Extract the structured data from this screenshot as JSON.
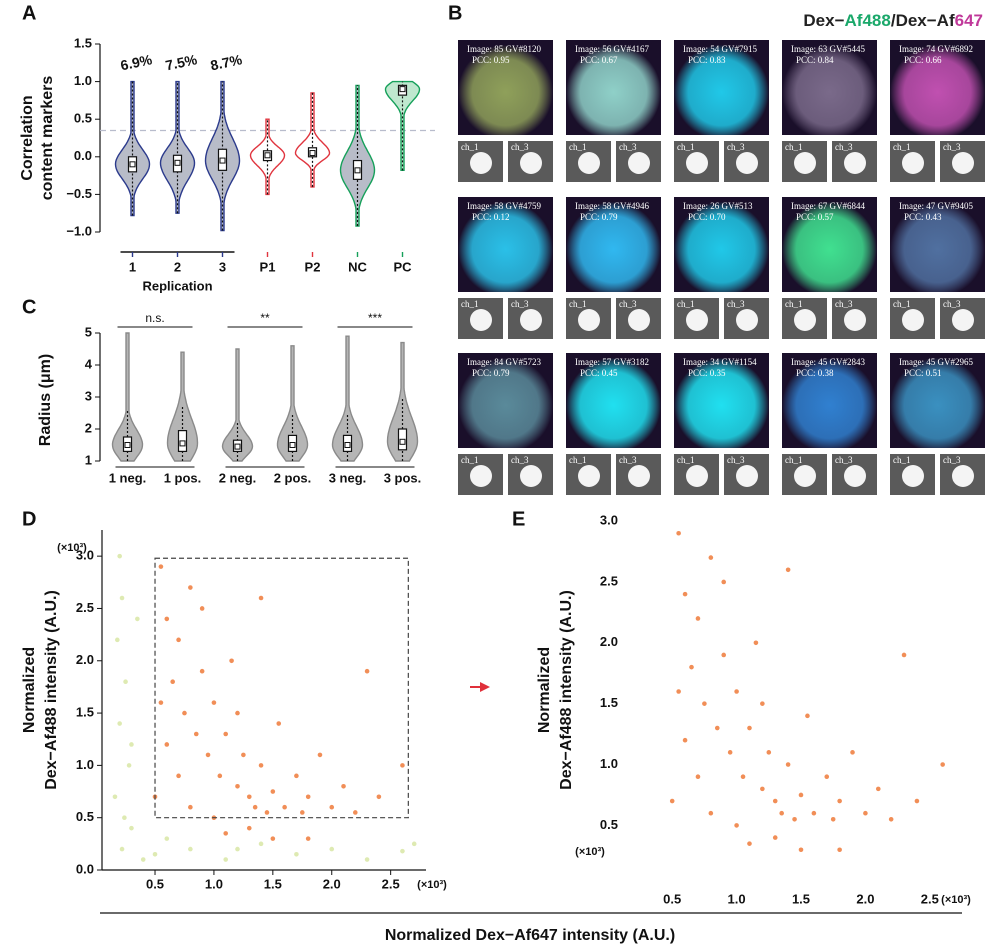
{
  "panel_labels": [
    "A",
    "B",
    "C",
    "D",
    "E"
  ],
  "shared_xlabel": "Normalized Dex−Af647 intensity (A.U.)",
  "panel_b": {
    "title_parts": [
      {
        "text": "Dex−",
        "color": "#222222"
      },
      {
        "text": "Af488",
        "color": "#1aa86a"
      },
      {
        "text": "/Dex−Af",
        "color": "#222222"
      },
      {
        "text": "647",
        "color": "#c0399a"
      }
    ],
    "channels": [
      "ch_1",
      "ch_3"
    ],
    "tiles": [
      [
        {
          "image": "Image: 85 GV#8120",
          "pcc": "PCC: 0.95",
          "color": "#8fa05a"
        },
        {
          "image": "Image: 56 GV#4167",
          "pcc": "PCC: 0.67",
          "color": "#8fd0c8"
        },
        {
          "image": "Image: 54 GV#7915",
          "pcc": "PCC: 0.83",
          "color": "#20c8e8"
        },
        {
          "image": "Image: 63 GV#5445",
          "pcc": "PCC: 0.84",
          "color": "#7a6a8a"
        },
        {
          "image": "Image: 74 GV#6892",
          "pcc": "PCC: 0.66",
          "color": "#c050b0"
        }
      ],
      [
        {
          "image": "Image: 58 GV#4759",
          "pcc": "PCC: 0.12",
          "color": "#2ac0e8"
        },
        {
          "image": "Image: 58 GV#4946",
          "pcc": "PCC: 0.79",
          "color": "#30b8f0"
        },
        {
          "image": "Image: 26 GV#513",
          "pcc": "PCC: 0.70",
          "color": "#20c8e8"
        },
        {
          "image": "Image: 67 GV#6844",
          "pcc": "PCC: 0.57",
          "color": "#40e090"
        },
        {
          "image": "Image: 47 GV#9405",
          "pcc": "PCC: 0.43",
          "color": "#5070a0"
        }
      ],
      [
        {
          "image": "Image: 84 GV#5723",
          "pcc": "PCC: 0.79",
          "color": "#5a8a9a"
        },
        {
          "image": "Image: 57 GV#3182",
          "pcc": "PCC: 0.45",
          "color": "#20e0f0"
        },
        {
          "image": "Image: 34 GV#1154",
          "pcc": "PCC: 0.35",
          "color": "#20e0f0"
        },
        {
          "image": "Image: 45 GV#2843",
          "pcc": "PCC: 0.38",
          "color": "#3080d0"
        },
        {
          "image": "Image: 45 GV#2965",
          "pcc": "PCC: 0.51",
          "color": "#3a90c0"
        }
      ]
    ]
  },
  "chart_data": [
    {
      "type": "violin",
      "ylabel": [
        "Correlation",
        "content markers"
      ],
      "ylim": [
        -1,
        1.5
      ],
      "yticks": [
        {
          "value": -1,
          "label": "−1.0"
        },
        {
          "value": -0.5,
          "label": "−0.5"
        },
        {
          "value": 0,
          "label": "0.0"
        },
        0.5,
        {
          "value": 1,
          "label": "1.0"
        },
        1.5
      ],
      "reference_line": 0.35,
      "categories": [
        "1",
        "2",
        "3",
        "P1",
        "P2",
        "NC",
        "PC"
      ],
      "colors": [
        "#2b3a8c",
        "#2b3a8c",
        "#2b3a8c",
        "#e0353f",
        "#e0353f",
        "#16a05a",
        "#16a05a"
      ],
      "fills": [
        "#b8bcc8",
        "#b8bcc8",
        "#b8bcc8",
        "none",
        "none",
        "#b8bcc8",
        "#bfe8cf"
      ],
      "label_colors": [
        "#111111",
        "#111111",
        "#111111",
        "#e0353f",
        "#e0353f",
        "#16a05a",
        "#16a05a"
      ],
      "annotations": [
        "6.9%",
        "7.5%",
        "8.7%"
      ],
      "bracket": {
        "label": "Replication",
        "span": [
          0,
          2
        ],
        "color": "#2b3a8c"
      },
      "stats": [
        {
          "min": -0.78,
          "q1": -0.2,
          "median": -0.1,
          "q3": 0.0,
          "max": 1.0
        },
        {
          "min": -0.75,
          "q1": -0.2,
          "median": -0.08,
          "q3": 0.02,
          "max": 1.0
        },
        {
          "min": -0.98,
          "q1": -0.18,
          "median": -0.05,
          "q3": 0.1,
          "max": 1.0
        },
        {
          "min": -0.5,
          "q1": -0.05,
          "median": 0.02,
          "q3": 0.08,
          "max": 0.5
        },
        {
          "min": -0.4,
          "q1": 0.0,
          "median": 0.05,
          "q3": 0.12,
          "max": 0.85
        },
        {
          "min": -0.92,
          "q1": -0.3,
          "median": -0.18,
          "q3": -0.05,
          "max": 0.95
        },
        {
          "min": -0.18,
          "q1": 0.82,
          "median": 0.9,
          "q3": 0.95,
          "max": 1.0
        }
      ]
    },
    {
      "type": "violin",
      "ylabel": [
        "Radius (μm)"
      ],
      "ylim": [
        1,
        5
      ],
      "yticks": [
        1,
        2,
        3,
        4,
        5
      ],
      "categories": [
        "1 neg.",
        "1 pos.",
        "2 neg.",
        "2 pos.",
        "3 neg.",
        "3 pos."
      ],
      "color": "#8a8a8a",
      "fill": "#b5b5b5",
      "comparisons": [
        {
          "label": "n.s.",
          "pair": [
            0,
            1
          ]
        },
        {
          "label": "**",
          "pair": [
            2,
            3
          ]
        },
        {
          "label": "***",
          "pair": [
            4,
            5
          ]
        }
      ],
      "stats": [
        {
          "min": 1.0,
          "q1": 1.3,
          "median": 1.5,
          "q3": 1.75,
          "max": 5.0,
          "whisker": [
            1.0,
            2.6
          ]
        },
        {
          "min": 1.0,
          "q1": 1.3,
          "median": 1.55,
          "q3": 1.95,
          "max": 4.4,
          "whisker": [
            1.0,
            2.75
          ]
        },
        {
          "min": 1.0,
          "q1": 1.3,
          "median": 1.45,
          "q3": 1.65,
          "max": 4.5,
          "whisker": [
            1.0,
            2.2
          ]
        },
        {
          "min": 1.0,
          "q1": 1.3,
          "median": 1.5,
          "q3": 1.8,
          "max": 4.6,
          "whisker": [
            1.0,
            2.45
          ]
        },
        {
          "min": 1.0,
          "q1": 1.3,
          "median": 1.5,
          "q3": 1.8,
          "max": 4.9,
          "whisker": [
            1.0,
            2.5
          ]
        },
        {
          "min": 1.0,
          "q1": 1.35,
          "median": 1.6,
          "q3": 2.0,
          "max": 4.7,
          "whisker": [
            1.0,
            3.0
          ]
        }
      ]
    },
    {
      "type": "scatter",
      "ylabel": [
        "Normalized",
        "Dex−Af488 intensity (A.U.)"
      ],
      "x_unit": "(×10³)",
      "y_unit": "(×10³)",
      "xlim": [
        0.05,
        2.8
      ],
      "ylim": [
        0,
        3.25
      ],
      "xticks": [
        0.5,
        {
          "value": 1,
          "label": "1.0"
        },
        1.5,
        {
          "value": 2,
          "label": "2.0"
        },
        2.5
      ],
      "yticks": [
        {
          "value": 0,
          "label": "0.0"
        },
        0.5,
        {
          "value": 1,
          "label": "1.0"
        },
        1.5,
        {
          "value": 2,
          "label": "2.0"
        },
        2.5,
        {
          "value": 3,
          "label": "3.0"
        }
      ],
      "spines": true,
      "box": {
        "x": [
          0.5,
          2.65
        ],
        "y": [
          0.5,
          2.98
        ]
      },
      "series": [
        {
          "color": "#d8e6a4",
          "x": [
            0.2,
            0.22,
            0.18,
            0.25,
            0.2,
            0.28,
            0.16,
            0.3,
            0.22,
            0.5,
            0.8,
            1.1,
            1.4,
            1.7,
            2.0,
            2.3,
            2.6,
            0.35,
            0.3,
            0.6,
            1.2,
            2.7,
            0.24,
            0.4
          ],
          "y": [
            3.0,
            2.6,
            2.2,
            1.8,
            1.4,
            1.0,
            0.7,
            0.4,
            0.2,
            0.15,
            0.2,
            0.1,
            0.25,
            0.15,
            0.2,
            0.1,
            0.18,
            2.4,
            1.2,
            0.3,
            0.2,
            0.25,
            0.5,
            0.1
          ]
        },
        {
          "color": "#ef7a3a",
          "x": [
            0.55,
            0.6,
            0.65,
            0.7,
            0.75,
            0.8,
            0.85,
            0.9,
            0.95,
            1.0,
            1.05,
            1.1,
            1.15,
            1.2,
            1.25,
            1.3,
            1.35,
            1.4,
            1.45,
            1.5,
            1.55,
            1.6,
            1.7,
            1.75,
            1.8,
            1.9,
            2.0,
            2.1,
            2.2,
            2.4,
            2.6,
            0.6,
            0.7,
            0.8,
            1.0,
            1.2,
            1.3,
            1.5,
            0.5,
            0.55,
            1.1,
            1.8,
            0.9,
            1.4,
            2.3
          ],
          "y": [
            2.9,
            2.4,
            1.8,
            2.2,
            1.5,
            2.7,
            1.3,
            1.9,
            1.1,
            1.6,
            0.9,
            1.3,
            2.0,
            0.8,
            1.1,
            0.7,
            0.6,
            1.0,
            0.55,
            0.75,
            1.4,
            0.6,
            0.9,
            0.55,
            0.7,
            1.1,
            0.6,
            0.8,
            0.55,
            0.7,
            1.0,
            1.2,
            0.9,
            0.6,
            0.5,
            1.5,
            0.4,
            0.3,
            0.7,
            1.6,
            0.35,
            0.3,
            2.5,
            2.6,
            1.9
          ]
        }
      ]
    },
    {
      "type": "scatter",
      "ylabel": [
        "Normalized",
        "Dex−Af488 intensity (A.U.)"
      ],
      "x_unit": "(×10³)",
      "y_unit": "(×10³)",
      "xlim": [
        0.25,
        2.75
      ],
      "ylim": [
        0.15,
        3.05
      ],
      "xticks": [
        0.5,
        {
          "value": 1,
          "label": "1.0"
        },
        1.5,
        {
          "value": 2,
          "label": "2.0"
        },
        2.5
      ],
      "yticks": [
        0.5,
        {
          "value": 1,
          "label": "1.0"
        },
        1.5,
        {
          "value": 2,
          "label": "2.0"
        },
        2.5,
        {
          "value": 3,
          "label": "3.0"
        }
      ],
      "spines": false,
      "series": [
        {
          "color": "#ef7a3a",
          "x": [
            0.55,
            0.6,
            0.65,
            0.7,
            0.75,
            0.8,
            0.85,
            0.9,
            0.95,
            1.0,
            1.05,
            1.1,
            1.15,
            1.2,
            1.25,
            1.3,
            1.35,
            1.4,
            1.45,
            1.5,
            1.55,
            1.6,
            1.7,
            1.75,
            1.8,
            1.9,
            2.0,
            2.1,
            2.2,
            2.4,
            2.6,
            0.6,
            0.7,
            0.8,
            1.0,
            1.2,
            1.3,
            1.5,
            0.5,
            0.55,
            1.1,
            1.8,
            0.9,
            1.4,
            2.3
          ],
          "y": [
            2.9,
            2.4,
            1.8,
            2.2,
            1.5,
            2.7,
            1.3,
            1.9,
            1.1,
            1.6,
            0.9,
            1.3,
            2.0,
            0.8,
            1.1,
            0.7,
            0.6,
            1.0,
            0.55,
            0.75,
            1.4,
            0.6,
            0.9,
            0.55,
            0.7,
            1.1,
            0.6,
            0.8,
            0.55,
            0.7,
            1.0,
            1.2,
            0.9,
            0.6,
            0.5,
            1.5,
            0.4,
            0.3,
            0.7,
            1.6,
            0.35,
            0.3,
            2.5,
            2.6,
            1.9
          ]
        }
      ]
    }
  ]
}
